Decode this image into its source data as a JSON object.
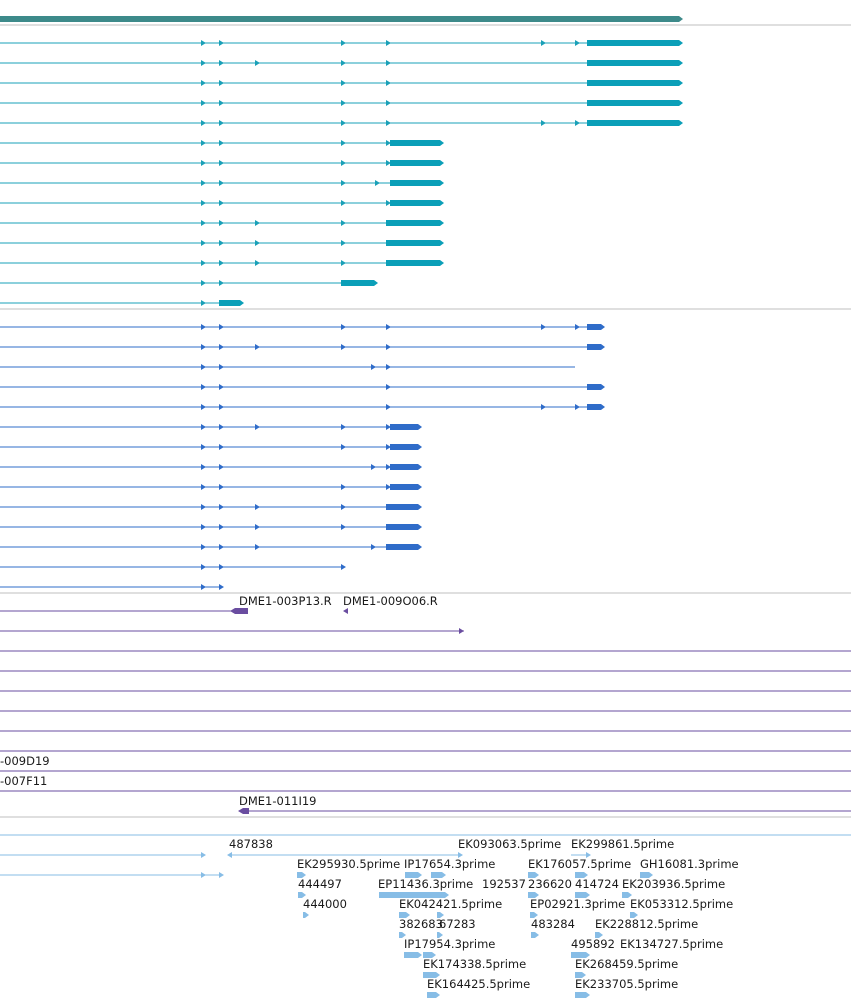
{
  "colors": {
    "gene": "#3d8a8a",
    "cyan_transcript": "#1aa0b8",
    "cyan_exon": "#0b9fb8",
    "blue_transcript": "#2f6cc9",
    "purple": "#6a4da0",
    "est": "#87bde6",
    "divider": "#bfbfbf"
  },
  "labels": {
    "clone_a": "DME1-003P13.R",
    "clone_b": "DME1-009O06.R",
    "clone_c": "-009D19",
    "clone_d": "-007F11",
    "clone_e": "DME1-011I19"
  },
  "est_labels": [
    "487838",
    "EK093063.5prime",
    "EK299861.5prime",
    "EK295930.5prime",
    "IP17654.3prime",
    "EK176057.5prime",
    "GH16081.3prime",
    "444497",
    "EP11436.3prime",
    "192537",
    "236620",
    "414724",
    "EK203936.5prime",
    "444000",
    "EK042421.5prime",
    "EP02921.3prime",
    "EK053312.5prime",
    "382683",
    "67283",
    "483284",
    "EK228812.5prime",
    "IP17954.3prime",
    "495892",
    "EK134727.5prime",
    "EK174338.5prime",
    "EK268459.5prime",
    "EK164425.5prime",
    "EK233705.5prime"
  ]
}
